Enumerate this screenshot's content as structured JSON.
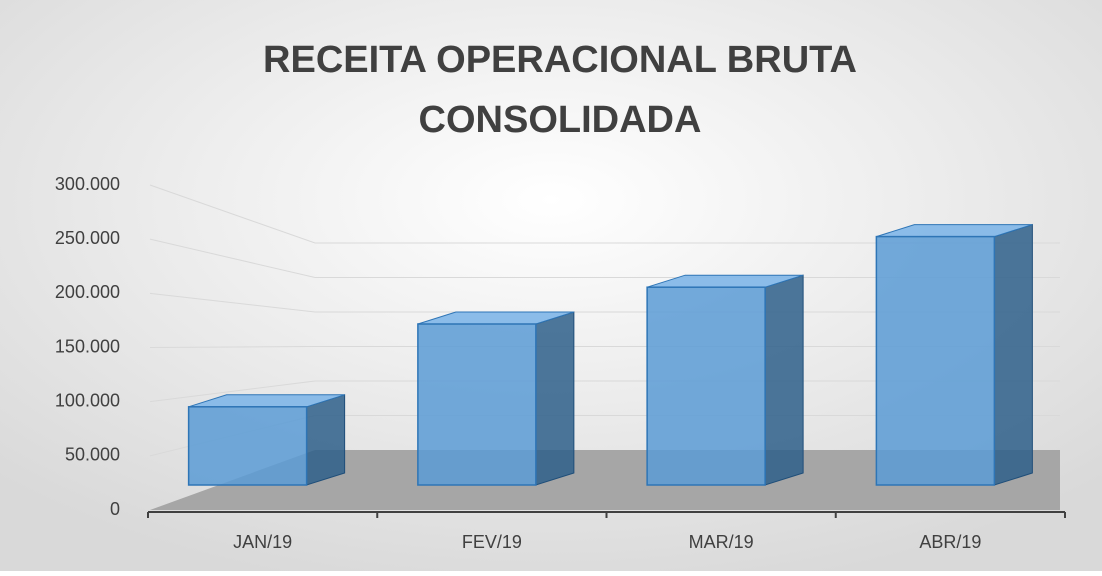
{
  "chart_data": {
    "type": "bar3d",
    "title": "RECEITA OPERACIONAL BRUTA CONSOLIDADA",
    "categories": [
      "JAN/19",
      "FEV/19",
      "MAR/19",
      "ABR/19"
    ],
    "values": [
      85000,
      175000,
      215000,
      270000
    ],
    "color": "#5b9bd5",
    "ylim": [
      0,
      300000
    ],
    "yticks": [
      0,
      {
        "value": 50000,
        "label": "50.000"
      },
      {
        "value": 100000,
        "label": "100.000"
      },
      {
        "value": 150000,
        "label": "150.000"
      },
      {
        "value": 200000,
        "label": "200.000"
      },
      {
        "value": 250000,
        "label": "250.000"
      },
      {
        "value": 300000,
        "label": "300.000"
      }
    ],
    "grid": true
  }
}
